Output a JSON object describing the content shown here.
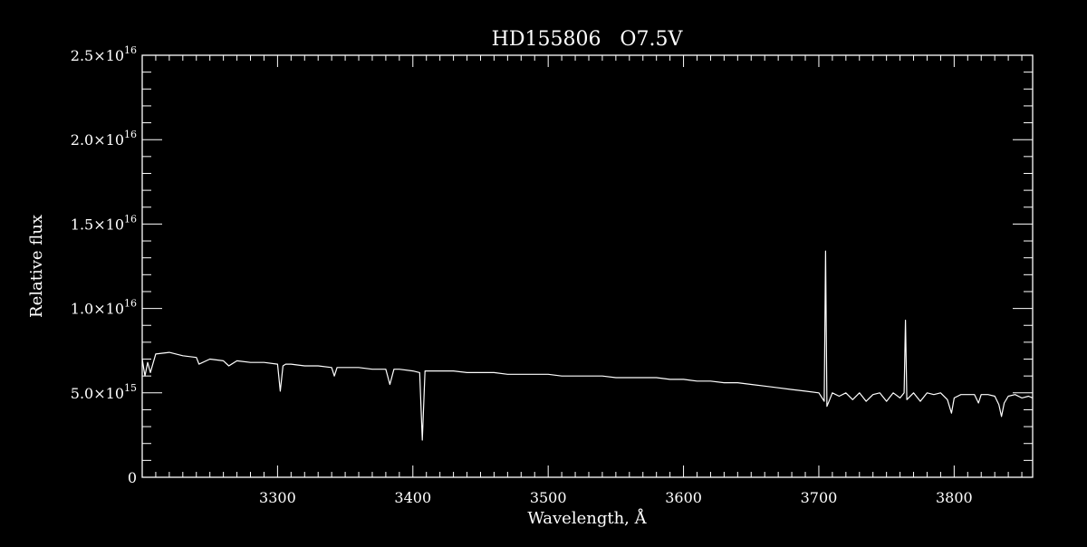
{
  "chart_data": {
    "type": "line",
    "title": "HD155806   O7.5V",
    "xlabel": "Wavelength, Å",
    "ylabel": "Relative flux",
    "xlim": [
      3200,
      3858
    ],
    "ylim": [
      0,
      2.5e+16
    ],
    "x_major_ticks": [
      3300,
      3400,
      3500,
      3600,
      3700,
      3800
    ],
    "x_tick_labels": [
      "3300",
      "3400",
      "3500",
      "3600",
      "3700",
      "3800"
    ],
    "y_tick_labels": [
      {
        "value": 0,
        "mantissa": "0",
        "exponent": ""
      },
      {
        "value": 5000000000000000.0,
        "mantissa": "5.0×10",
        "exponent": "15"
      },
      {
        "value": 1e+16,
        "mantissa": "1.0×10",
        "exponent": "16"
      },
      {
        "value": 1.5e+16,
        "mantissa": "1.5×10",
        "exponent": "16"
      },
      {
        "value": 2e+16,
        "mantissa": "2.0×10",
        "exponent": "16"
      },
      {
        "value": 2.5e+16,
        "mantissa": "2.5×10",
        "exponent": "16"
      }
    ],
    "grid": false,
    "background_color": "#000000",
    "line_color": "#ffffff",
    "series": [
      {
        "x": [
          3200,
          3202,
          3204,
          3206,
          3210,
          3220,
          3230,
          3240,
          3242,
          3250,
          3260,
          3264,
          3270,
          3280,
          3290,
          3300,
          3302,
          3304,
          3306,
          3310,
          3320,
          3330,
          3340,
          3342,
          3344,
          3350,
          3360,
          3370,
          3380,
          3383,
          3386,
          3390,
          3400,
          3405,
          3407,
          3409,
          3420,
          3430,
          3440,
          3450,
          3460,
          3470,
          3480,
          3490,
          3500,
          3510,
          3520,
          3530,
          3540,
          3550,
          3560,
          3570,
          3580,
          3590,
          3600,
          3610,
          3620,
          3630,
          3640,
          3650,
          3660,
          3670,
          3680,
          3690,
          3700,
          3704,
          3705,
          3706,
          3710,
          3715,
          3720,
          3725,
          3730,
          3735,
          3740,
          3745,
          3750,
          3755,
          3760,
          3763,
          3764,
          3765,
          3770,
          3775,
          3780,
          3785,
          3790,
          3795,
          3798,
          3800,
          3805,
          3810,
          3815,
          3818,
          3820,
          3825,
          3830,
          3833,
          3835,
          3837,
          3840,
          3845,
          3850,
          3855,
          3858
        ],
        "y": [
          7000000000000000.0,
          6000000000000000.0,
          6800000000000000.0,
          6200000000000000.0,
          7300000000000000.0,
          7400000000000000.0,
          7200000000000000.0,
          7100000000000000.0,
          6700000000000000.0,
          7000000000000000.0,
          6900000000000000.0,
          6600000000000000.0,
          6900000000000000.0,
          6800000000000000.0,
          6800000000000000.0,
          6700000000000000.0,
          5100000000000000.0,
          6600000000000000.0,
          6700000000000000.0,
          6700000000000000.0,
          6600000000000000.0,
          6600000000000000.0,
          6500000000000000.0,
          6000000000000000.0,
          6500000000000000.0,
          6500000000000000.0,
          6500000000000000.0,
          6400000000000000.0,
          6400000000000000.0,
          5500000000000000.0,
          6400000000000000.0,
          6400000000000000.0,
          6300000000000000.0,
          6200000000000000.0,
          2200000000000000.0,
          6300000000000000.0,
          6300000000000000.0,
          6300000000000000.0,
          6200000000000000.0,
          6200000000000000.0,
          6200000000000000.0,
          6100000000000000.0,
          6100000000000000.0,
          6100000000000000.0,
          6100000000000000.0,
          6000000000000000.0,
          6000000000000000.0,
          6000000000000000.0,
          6000000000000000.0,
          5900000000000000.0,
          5900000000000000.0,
          5900000000000000.0,
          5900000000000000.0,
          5800000000000000.0,
          5800000000000000.0,
          5700000000000000.0,
          5700000000000000.0,
          5600000000000000.0,
          5600000000000000.0,
          5500000000000000.0,
          5400000000000000.0,
          5300000000000000.0,
          5200000000000000.0,
          5100000000000000.0,
          5000000000000000.0,
          4500000000000000.0,
          1.34e+16,
          4200000000000000.0,
          5000000000000000.0,
          4800000000000000.0,
          5000000000000000.0,
          4600000000000000.0,
          5000000000000000.0,
          4500000000000000.0,
          4900000000000000.0,
          5000000000000000.0,
          4500000000000000.0,
          5000000000000000.0,
          4700000000000000.0,
          5000000000000000.0,
          9300000000000000.0,
          4600000000000000.0,
          5000000000000000.0,
          4500000000000000.0,
          5000000000000000.0,
          4900000000000000.0,
          5000000000000000.0,
          4600000000000000.0,
          3800000000000000.0,
          4700000000000000.0,
          4900000000000000.0,
          4900000000000000.0,
          4900000000000000.0,
          4400000000000000.0,
          4900000000000000.0,
          4900000000000000.0,
          4800000000000000.0,
          4300000000000000.0,
          3600000000000000.0,
          4400000000000000.0,
          4800000000000000.0,
          4900000000000000.0,
          4700000000000000.0,
          4800000000000000.0,
          4700000000000000.0
        ]
      }
    ]
  }
}
